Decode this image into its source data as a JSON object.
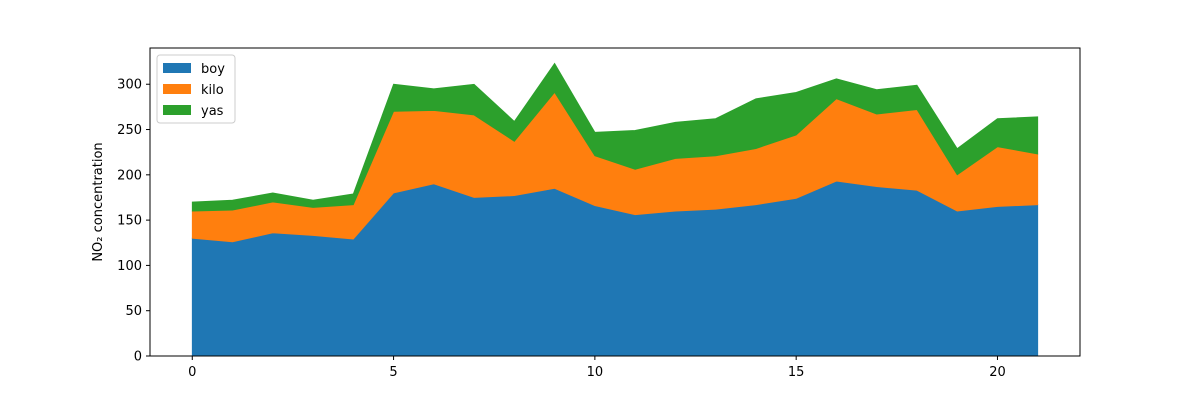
{
  "chart_data": {
    "type": "area",
    "stacked": true,
    "x": [
      0,
      1,
      2,
      3,
      4,
      5,
      6,
      7,
      8,
      9,
      10,
      11,
      12,
      13,
      14,
      15,
      16,
      17,
      18,
      19,
      20,
      21
    ],
    "series": [
      {
        "name": "boy",
        "color": "#1f77b4",
        "values": [
          130,
          126,
          136,
          133,
          129,
          180,
          190,
          175,
          177,
          185,
          166,
          156,
          160,
          162,
          167,
          174,
          193,
          187,
          183,
          160,
          165,
          167
        ]
      },
      {
        "name": "kilo",
        "color": "#ff7f0e",
        "values": [
          30,
          35,
          34,
          31,
          38,
          90,
          81,
          91,
          60,
          106,
          55,
          50,
          58,
          59,
          62,
          70,
          91,
          80,
          89,
          40,
          66,
          56
        ]
      },
      {
        "name": "yas",
        "color": "#2ca02c",
        "values": [
          10,
          11,
          10,
          8,
          12,
          30,
          24,
          34,
          22,
          32,
          26,
          43,
          40,
          41,
          55,
          47,
          22,
          27,
          27,
          29,
          31,
          41
        ]
      }
    ],
    "ylabel": "NO₂ concentration",
    "xlim": [
      -1.05,
      22.05
    ],
    "ylim": [
      0,
      340
    ],
    "xticks": [
      0,
      5,
      10,
      15,
      20
    ],
    "yticks": [
      0,
      50,
      100,
      150,
      200,
      250,
      300
    ],
    "xtick_labels": [
      "0",
      "5",
      "10",
      "15",
      "20"
    ],
    "ytick_labels": [
      "0",
      "50",
      "100",
      "150",
      "200",
      "250",
      "300"
    ],
    "legend_position": "top-left",
    "grid": false
  }
}
